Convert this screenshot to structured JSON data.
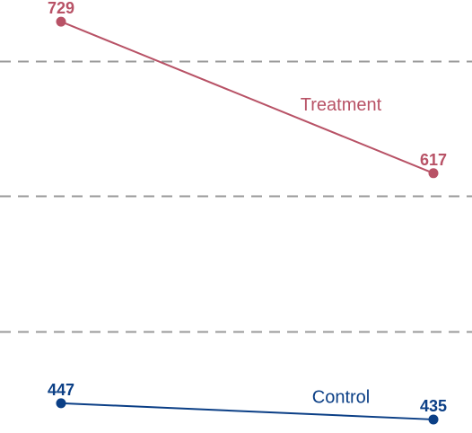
{
  "chart_data": {
    "type": "line",
    "x": [
      "",
      ""
    ],
    "series": [
      {
        "name": "Treatment",
        "values": [
          729,
          617
        ],
        "color": "#b85266"
      },
      {
        "name": "Control",
        "values": [
          447,
          435
        ],
        "color": "#0b3f86"
      }
    ],
    "ylim": [
      425,
      745
    ],
    "grid": true,
    "gridlines_y": [
      700,
      600,
      500
    ],
    "grid_color": "#999999"
  }
}
